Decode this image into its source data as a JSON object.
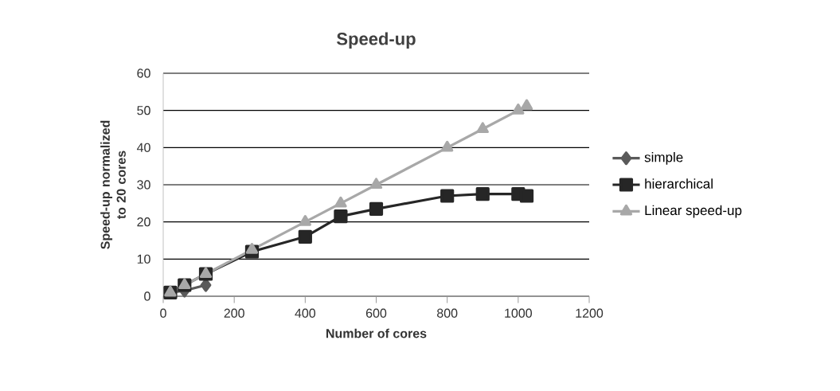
{
  "chart_data": {
    "type": "line",
    "title": "Speed-up",
    "xlabel": "Number of cores",
    "ylabel": "Speed-up normalized to 20 cores",
    "xlim": [
      0,
      1200
    ],
    "xticks": [
      0,
      200,
      400,
      600,
      800,
      1000,
      1200
    ],
    "ylim": [
      0,
      60
    ],
    "yticks": [
      0,
      10,
      20,
      30,
      40,
      50,
      60
    ],
    "grid": "y",
    "legend": "right",
    "line_style": "solid",
    "series": [
      {
        "name": "simple",
        "color": "#5a5a5a",
        "marker": "diamond",
        "x": [
          20,
          60,
          120
        ],
        "values": [
          1,
          1.5,
          3
        ]
      },
      {
        "name": "hierarchical",
        "color": "#262626",
        "marker": "square",
        "x": [
          20,
          60,
          120,
          250,
          400,
          500,
          600,
          800,
          900,
          1000,
          1024
        ],
        "values": [
          1,
          3,
          6,
          12,
          16,
          21.5,
          23.5,
          27,
          27.5,
          27.5,
          27
        ]
      },
      {
        "name": "Linear speed-up",
        "color": "#a8a8a8",
        "marker": "triangle",
        "x": [
          20,
          60,
          120,
          250,
          400,
          500,
          600,
          800,
          900,
          1000,
          1024
        ],
        "values": [
          1,
          3,
          6,
          12.5,
          20,
          25,
          30,
          40,
          45,
          50,
          51.2
        ]
      }
    ]
  }
}
